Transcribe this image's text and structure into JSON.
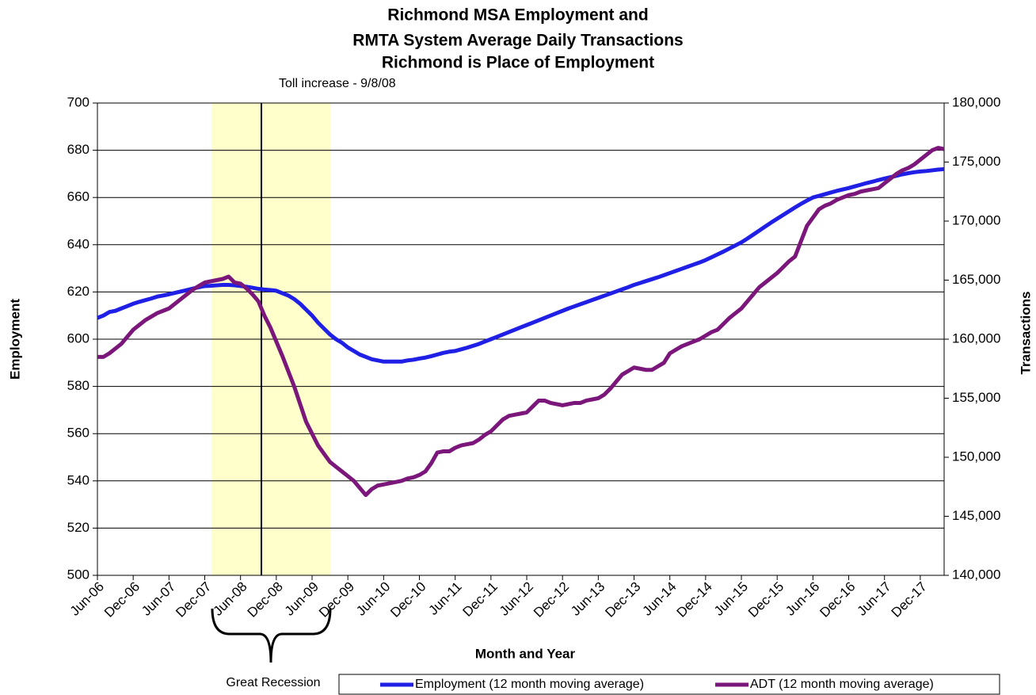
{
  "chart_data": {
    "type": "line",
    "title": [
      "Richmond MSA Employment and",
      "RMTA System Average Daily Transactions",
      "Richmond is Place of Employment"
    ],
    "x_label": "Month and Year",
    "y_label": "Employment",
    "y2_label": "Transactions",
    "annotations": [
      "Toll increase - 9/8/08",
      "Great Recession"
    ],
    "categories": [
      "Jun-06",
      null,
      null,
      null,
      null,
      null,
      "Dec-06",
      null,
      null,
      null,
      null,
      null,
      "Jun-07",
      null,
      null,
      null,
      null,
      null,
      "Dec-07",
      null,
      null,
      null,
      null,
      null,
      "Jun-08",
      null,
      null,
      null,
      null,
      null,
      "Dec-08",
      null,
      null,
      null,
      null,
      null,
      "Jun-09",
      null,
      null,
      null,
      null,
      null,
      "Dec-09",
      null,
      null,
      null,
      null,
      null,
      "Jun-10",
      null,
      null,
      null,
      null,
      null,
      "Dec-10",
      null,
      null,
      null,
      null,
      null,
      "Jun-11",
      null,
      null,
      null,
      null,
      null,
      "Dec-11",
      null,
      null,
      null,
      null,
      null,
      "Jun-12",
      null,
      null,
      null,
      null,
      null,
      "Dec-12",
      null,
      null,
      null,
      null,
      null,
      "Jun-13",
      null,
      null,
      null,
      null,
      null,
      "Dec-13",
      null,
      null,
      null,
      null,
      null,
      "Jun-14",
      null,
      null,
      null,
      null,
      null,
      "Dec-14",
      null,
      null,
      null,
      null,
      null,
      "Jun-15",
      null,
      null,
      null,
      null,
      null,
      "Dec-15",
      null,
      null,
      null,
      null,
      null,
      "Jun-16",
      null,
      null,
      null,
      null,
      null,
      "Dec-16",
      null,
      null,
      null,
      null,
      null,
      "Jun-17",
      null,
      null,
      null,
      null,
      null,
      "Dec-17",
      null,
      null,
      null,
      null
    ],
    "series": [
      {
        "name": "Employment (12 month moving average)",
        "color": "#1f1fe6",
        "values": [
          609,
          610,
          611.5,
          612,
          613,
          614,
          615,
          615.8,
          616.5,
          617.2,
          618,
          618.5,
          619,
          619.6,
          620.2,
          620.8,
          621.4,
          622,
          622.5,
          622.6,
          622.8,
          623,
          623,
          622.8,
          622.5,
          622.2,
          621.8,
          621.3,
          621,
          620.8,
          620.5,
          619.5,
          618.5,
          617,
          615,
          612.5,
          610,
          607,
          604.5,
          602,
          600,
          598.5,
          596.5,
          595,
          593.5,
          592.5,
          591.5,
          591,
          590.5,
          590.5,
          590.5,
          590.5,
          591,
          591.3,
          591.8,
          592.2,
          592.8,
          593.5,
          594.2,
          594.7,
          595,
          595.7,
          596.4,
          597.2,
          598,
          599,
          600,
          601,
          602,
          603,
          604,
          605,
          606,
          607,
          608,
          609,
          610,
          611,
          612,
          613,
          613.9,
          614.8,
          615.7,
          616.6,
          617.5,
          618.4,
          619.3,
          620.2,
          621.1,
          622,
          623,
          623.8,
          624.6,
          625.4,
          626.2,
          627.1,
          628,
          628.9,
          629.8,
          630.7,
          631.6,
          632.5,
          633.5,
          634.7,
          635.9,
          637.1,
          638.4,
          639.7,
          641,
          642.6,
          644.3,
          646,
          647.7,
          649.4,
          651,
          652.6,
          654.2,
          655.8,
          657.3,
          658.7,
          660,
          660.7,
          661.4,
          662.1,
          662.8,
          663.4,
          664,
          664.7,
          665.4,
          666.1,
          666.7,
          667.4,
          668,
          668.6,
          669.2,
          669.8,
          670.3,
          670.7,
          671,
          671.2,
          671.5,
          671.8,
          672
        ]
      },
      {
        "name": "ADT (12 month moving average)",
        "color": "#7b167b",
        "axis": "y2",
        "values": [
          158500,
          158500,
          158800,
          159200,
          159600,
          160200,
          160800,
          161200,
          161600,
          161900,
          162200,
          162400,
          162600,
          163000,
          163400,
          163800,
          164200,
          164500,
          164800,
          164900,
          165000,
          165100,
          165300,
          164800,
          164700,
          164300,
          163800,
          163200,
          162000,
          161000,
          159800,
          158600,
          157300,
          156000,
          154500,
          153000,
          152000,
          151000,
          150300,
          149600,
          149200,
          148800,
          148400,
          148000,
          147400,
          146800,
          147300,
          147600,
          147700,
          147800,
          147900,
          148000,
          148200,
          148300,
          148500,
          148800,
          149500,
          150400,
          150500,
          150500,
          150800,
          151000,
          151100,
          151200,
          151500,
          151900,
          152200,
          152700,
          153200,
          153500,
          153600,
          153700,
          153800,
          154300,
          154800,
          154800,
          154600,
          154500,
          154400,
          154500,
          154600,
          154600,
          154800,
          154900,
          155000,
          155300,
          155800,
          156400,
          157000,
          157300,
          157600,
          157500,
          157400,
          157400,
          157700,
          158000,
          158800,
          159100,
          159400,
          159600,
          159800,
          160000,
          160300,
          160600,
          160800,
          161300,
          161800,
          162200,
          162600,
          163200,
          163800,
          164400,
          164800,
          165200,
          165600,
          166100,
          166600,
          167000,
          168300,
          169600,
          170300,
          171000,
          171300,
          171500,
          171800,
          172000,
          172200,
          172300,
          172500,
          172600,
          172700,
          172800,
          173200,
          173600,
          174000,
          174300,
          174500,
          174800,
          175200,
          175600,
          176000,
          176200,
          176100
        ]
      }
    ],
    "ylim": [
      500,
      700
    ],
    "yticks": [
      500,
      520,
      540,
      560,
      580,
      600,
      620,
      640,
      660,
      680,
      700
    ],
    "y2lim": [
      140000,
      180000
    ],
    "y2ticks": [
      {
        "value": 140000,
        "label": "140,000"
      },
      {
        "value": 145000,
        "label": "145,000"
      },
      {
        "value": 150000,
        "label": "150,000"
      },
      {
        "value": 155000,
        "label": "155,000"
      },
      {
        "value": 160000,
        "label": "160,000"
      },
      {
        "value": 165000,
        "label": "165,000"
      },
      {
        "value": 170000,
        "label": "170,000"
      },
      {
        "value": 175000,
        "label": "175,000"
      },
      {
        "value": 180000,
        "label": "180,000"
      }
    ],
    "grid": true,
    "legend": "bottom"
  }
}
